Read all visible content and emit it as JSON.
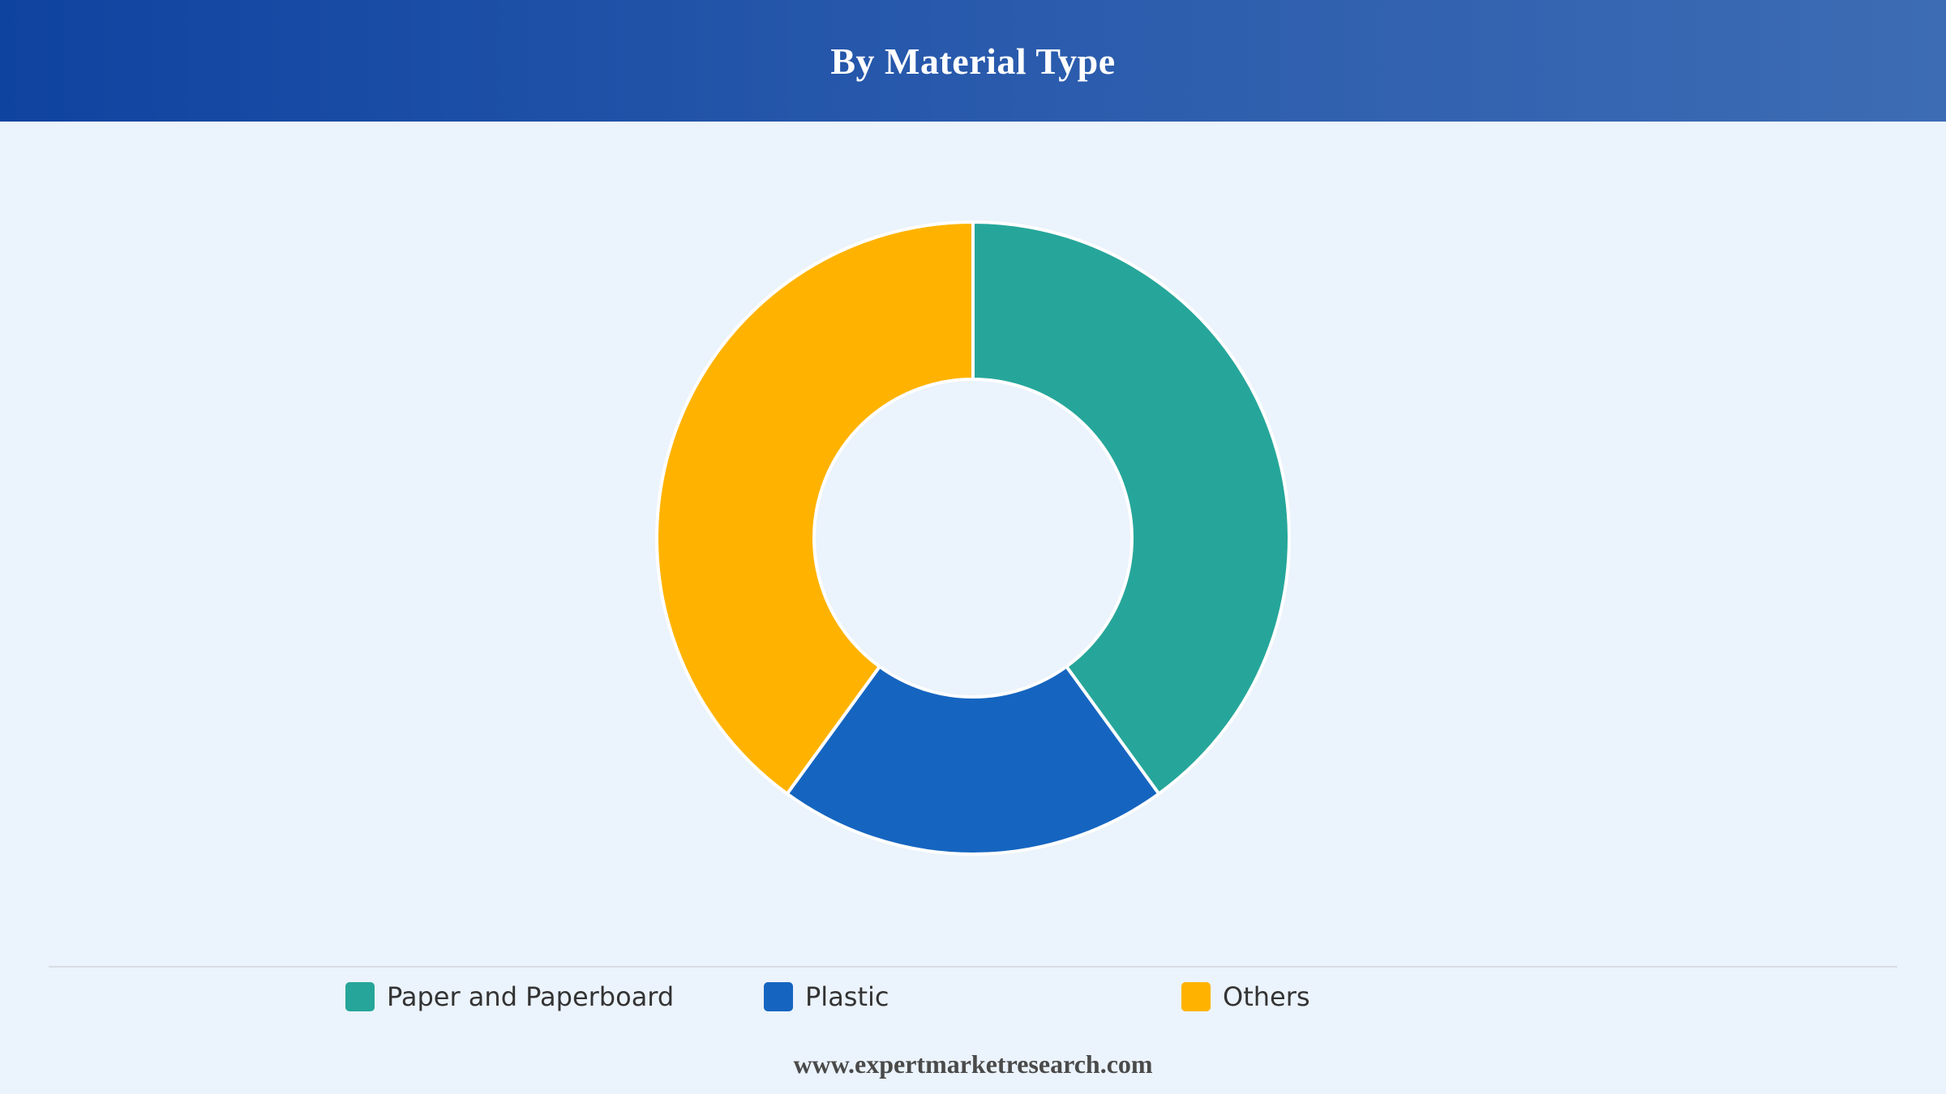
{
  "header": {
    "title": "By Material Type"
  },
  "chart_data": {
    "type": "pie",
    "donut": true,
    "title": "By Material Type",
    "categories": [
      "Paper and Paperboard",
      "Plastic",
      "Others"
    ],
    "values": [
      40,
      20,
      40
    ],
    "colors": [
      "#26a69a",
      "#1565c0",
      "#ffb300"
    ],
    "legend_position": "bottom"
  },
  "legend": {
    "items": [
      {
        "label": "Paper and Paperboard",
        "color": "#26a69a"
      },
      {
        "label": "Plastic",
        "color": "#1565c0"
      },
      {
        "label": "Others",
        "color": "#ffb300"
      }
    ]
  },
  "footer": {
    "source": "www.expertmarketresearch.com"
  }
}
